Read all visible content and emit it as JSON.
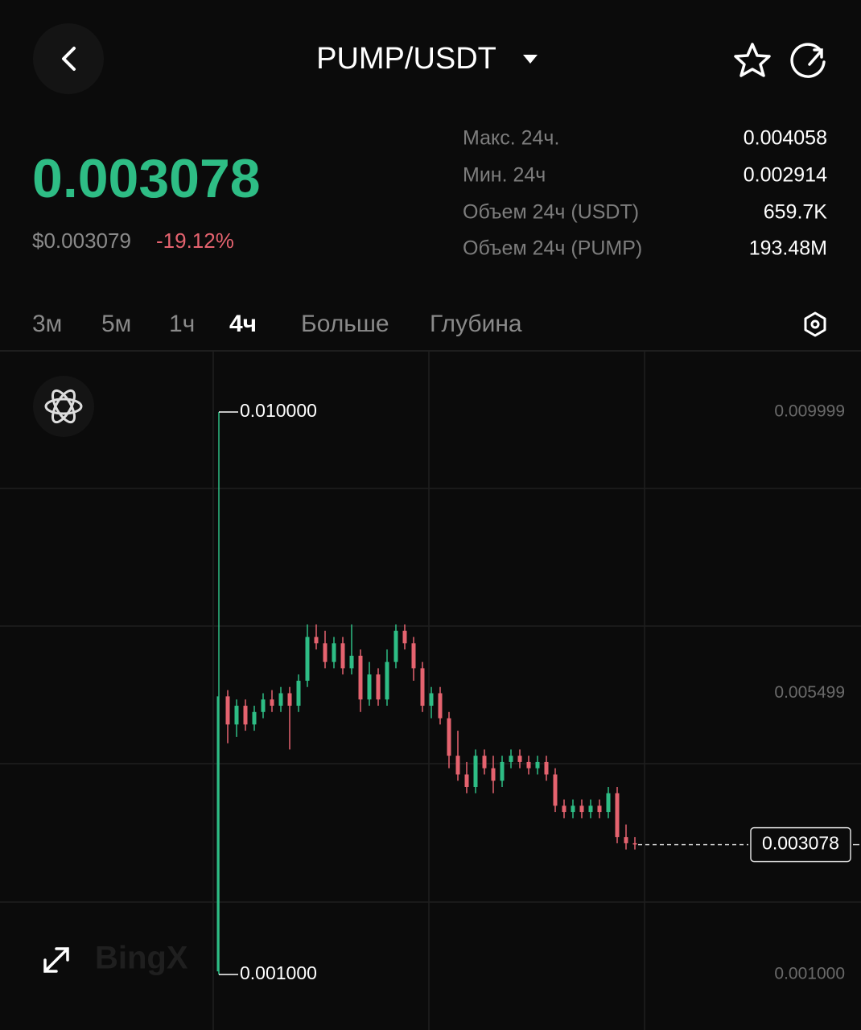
{
  "header": {
    "pair": "PUMP/USDT"
  },
  "ticker": {
    "price": "0.003078",
    "usd_price": "$0.003079",
    "change": "-19.12%"
  },
  "stats": [
    {
      "label": "Макс. 24ч.",
      "value": "0.004058"
    },
    {
      "label": "Мин. 24ч",
      "value": "0.002914"
    },
    {
      "label": "Объем 24ч (USDT)",
      "value": "659.7K"
    },
    {
      "label": "Объем 24ч (PUMP)",
      "value": "193.48M"
    }
  ],
  "tabs": [
    "3м",
    "5м",
    "1ч",
    "4ч",
    "Больше",
    "Глубина"
  ],
  "active_tab": 3,
  "watermark": "BingX",
  "chart": {
    "type": "candlestick",
    "ylim": [
      0.000112,
      0.010965
    ],
    "yticks": [
      0.009999,
      0.005499,
      {
        "value": 0.001,
        "label": "0.001000"
      }
    ],
    "max_label": {
      "value": 0.01,
      "label": "0.010000"
    },
    "min_label": {
      "value": 0.001,
      "label": "0.001000"
    },
    "last_price": {
      "value": 0.003078,
      "label": "0.003078"
    },
    "up_color": "#2ebd85",
    "down_color": "#e5636f",
    "open": [
      0.00105,
      0.00545,
      0.005,
      0.0053,
      0.005,
      0.0052,
      0.0054,
      0.0053,
      0.0055,
      0.0053,
      0.0057,
      0.0064,
      0.0063,
      0.006,
      0.0063,
      0.0059,
      0.0061,
      0.0054,
      0.0058,
      0.0054,
      0.006,
      0.0065,
      0.0063,
      0.0059,
      0.0053,
      0.0055,
      0.0051,
      0.0045,
      0.0042,
      0.004,
      0.0045,
      0.0043,
      0.0041,
      0.0044,
      0.0045,
      0.0044,
      0.0043,
      0.0044,
      0.0042,
      0.0037,
      0.0036,
      0.0037,
      0.0036,
      0.0037,
      0.0036,
      0.0039,
      0.0032,
      0.0031
    ],
    "high": [
      0.01,
      0.00555,
      0.0054,
      0.0054,
      0.0053,
      0.0055,
      0.00555,
      0.0056,
      0.0056,
      0.0058,
      0.0066,
      0.0066,
      0.0065,
      0.0064,
      0.0064,
      0.0066,
      0.0062,
      0.006,
      0.0059,
      0.0062,
      0.0066,
      0.0066,
      0.0064,
      0.006,
      0.0056,
      0.0056,
      0.0052,
      0.0049,
      0.0044,
      0.0046,
      0.0046,
      0.0045,
      0.0045,
      0.0046,
      0.0046,
      0.0045,
      0.0045,
      0.0045,
      0.0043,
      0.0038,
      0.0038,
      0.0038,
      0.0038,
      0.0038,
      0.004,
      0.004,
      0.0034,
      0.0032
    ],
    "low": [
      0.001,
      0.0047,
      0.0048,
      0.0049,
      0.0049,
      0.0051,
      0.0052,
      0.0052,
      0.0046,
      0.0052,
      0.0056,
      0.0062,
      0.0059,
      0.0059,
      0.0058,
      0.0058,
      0.0052,
      0.0053,
      0.0053,
      0.0053,
      0.0059,
      0.0062,
      0.0057,
      0.0052,
      0.0051,
      0.005,
      0.0043,
      0.0041,
      0.0039,
      0.0039,
      0.0042,
      0.0039,
      0.004,
      0.0043,
      0.0043,
      0.0042,
      0.0042,
      0.0041,
      0.0036,
      0.0035,
      0.0035,
      0.0035,
      0.0035,
      0.0035,
      0.0035,
      0.0031,
      0.003,
      0.003
    ],
    "close": [
      0.00545,
      0.005,
      0.0053,
      0.005,
      0.0052,
      0.0054,
      0.0053,
      0.0055,
      0.0053,
      0.0057,
      0.0064,
      0.0063,
      0.006,
      0.0063,
      0.0059,
      0.0061,
      0.0054,
      0.0058,
      0.0054,
      0.006,
      0.0065,
      0.0063,
      0.0059,
      0.0053,
      0.0055,
      0.0051,
      0.0045,
      0.0042,
      0.004,
      0.0045,
      0.0043,
      0.0041,
      0.0044,
      0.0045,
      0.0044,
      0.0043,
      0.0044,
      0.0042,
      0.0037,
      0.0036,
      0.0037,
      0.0036,
      0.0037,
      0.0036,
      0.0039,
      0.0032,
      0.0031,
      0.00308
    ]
  }
}
